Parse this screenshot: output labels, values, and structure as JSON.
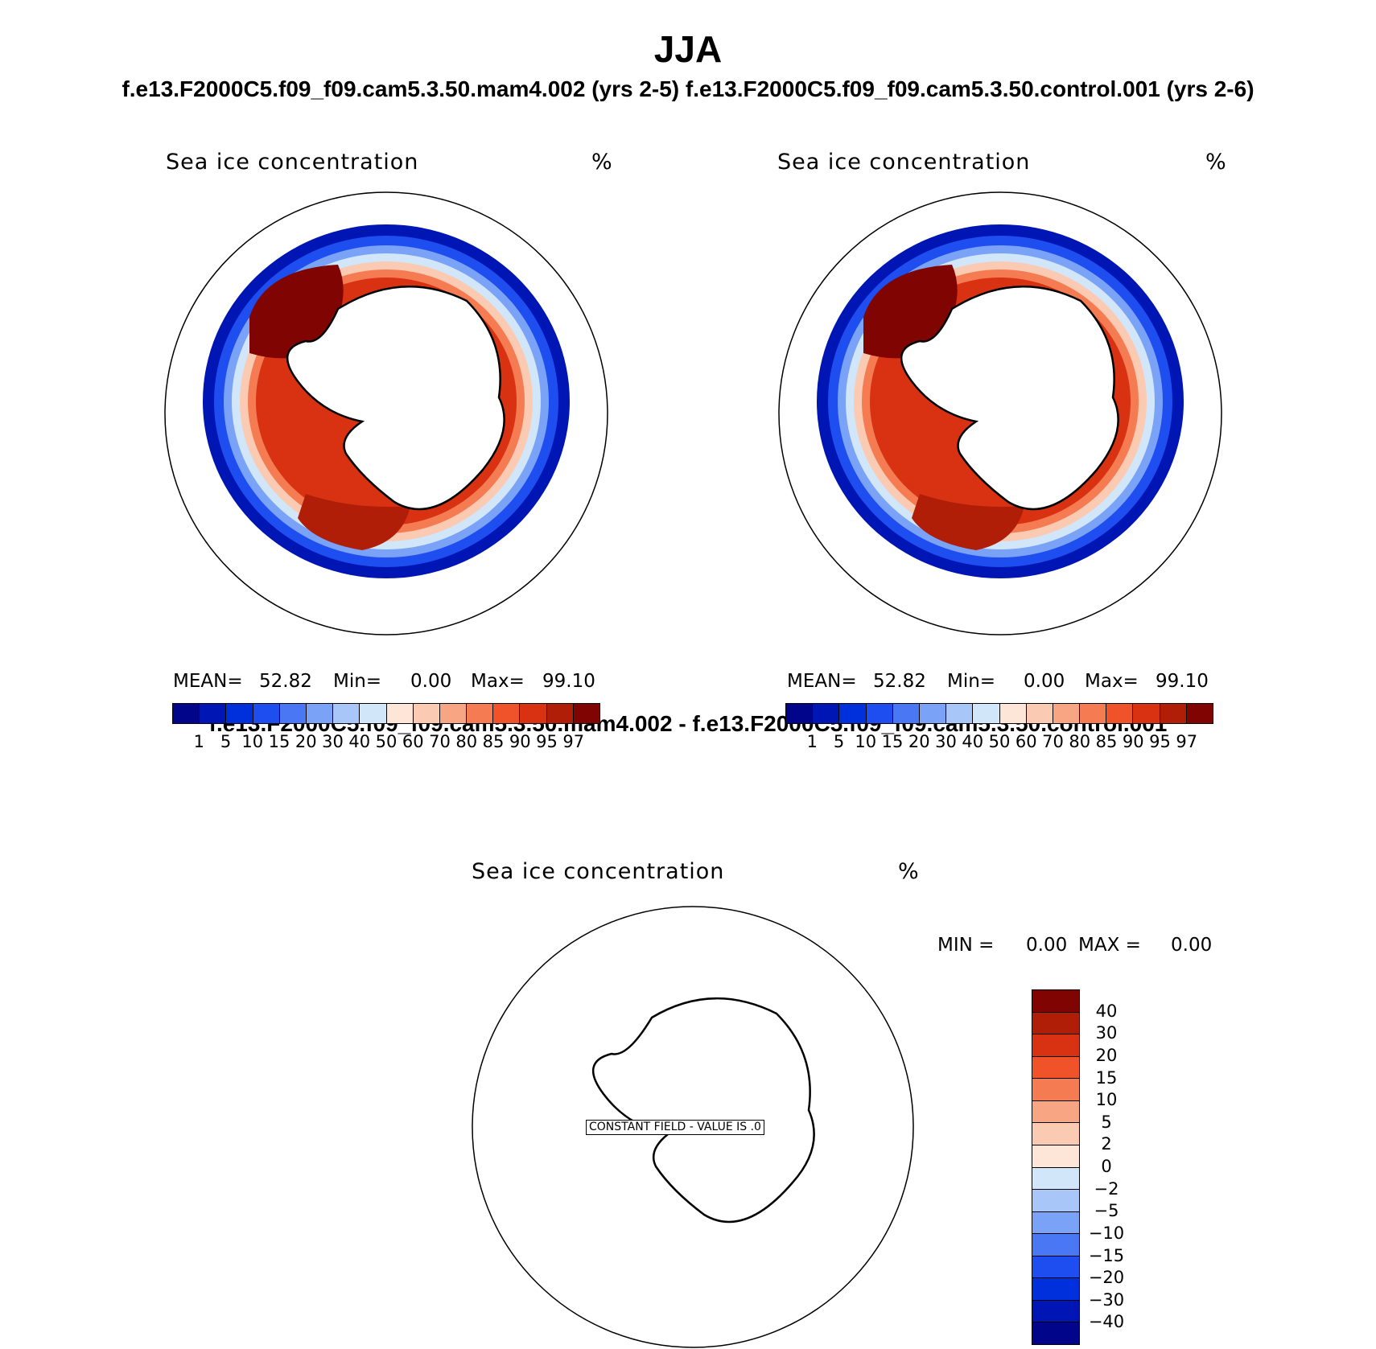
{
  "title": "JJA",
  "subtitle_top": "f.e13.F2000C5.f09_f09.cam5.3.50.mam4.002 (yrs 2-5) f.e13.F2000C5.f09_f09.cam5.3.50.control.001 (yrs 2-6)",
  "subtitle_diff": "f.e13.F2000C5.f09_f09.cam5.3.50.mam4.002 - f.e13.F2000C5.f09_f09.cam5.3.50.control.001",
  "panels": [
    {
      "label": "Sea ice concentration",
      "units": "%",
      "stats": {
        "mean_label": "MEAN=",
        "mean": "52.82",
        "min_label": "Min=",
        "min": "0.00",
        "max_label": "Max=",
        "max": "99.10"
      }
    },
    {
      "label": "Sea ice concentration",
      "units": "%",
      "stats": {
        "mean_label": "MEAN=",
        "mean": "52.82",
        "min_label": "Min=",
        "min": "0.00",
        "max_label": "Max=",
        "max": "99.10"
      }
    }
  ],
  "diff_panel": {
    "label": "Sea ice concentration",
    "units": "%",
    "min_label": "MIN =",
    "min": "0.00",
    "max_label": "MAX =",
    "max": "0.00",
    "constant_text": "CONSTANT FIELD - VALUE IS .0"
  },
  "colorbar_top": {
    "colors": [
      "#00058a",
      "#0016b4",
      "#0030dc",
      "#1e4ef0",
      "#4a78f4",
      "#7aa2f6",
      "#a8c6f8",
      "#d2e6fa",
      "#fde6d8",
      "#fbcab2",
      "#f8a584",
      "#f57c52",
      "#f0522a",
      "#d83212",
      "#b01e08",
      "#800402"
    ],
    "ticks": [
      "1",
      "5",
      "10",
      "15",
      "20",
      "30",
      "40",
      "50",
      "60",
      "70",
      "80",
      "85",
      "90",
      "95",
      "97"
    ]
  },
  "colorbar_diff": {
    "colors": [
      "#800402",
      "#b01e08",
      "#d83212",
      "#f0522a",
      "#f57c52",
      "#f8a584",
      "#fbcab2",
      "#fde6d8",
      "#d2e6fa",
      "#a8c6f8",
      "#7aa2f6",
      "#4a78f4",
      "#1e4ef0",
      "#0030dc",
      "#0016b4",
      "#00058a"
    ],
    "ticks": [
      "40",
      "30",
      "20",
      "15",
      "10",
      "5",
      "2",
      "0",
      "−2",
      "−5",
      "−10",
      "−15",
      "−20",
      "−30",
      "−40"
    ]
  }
}
